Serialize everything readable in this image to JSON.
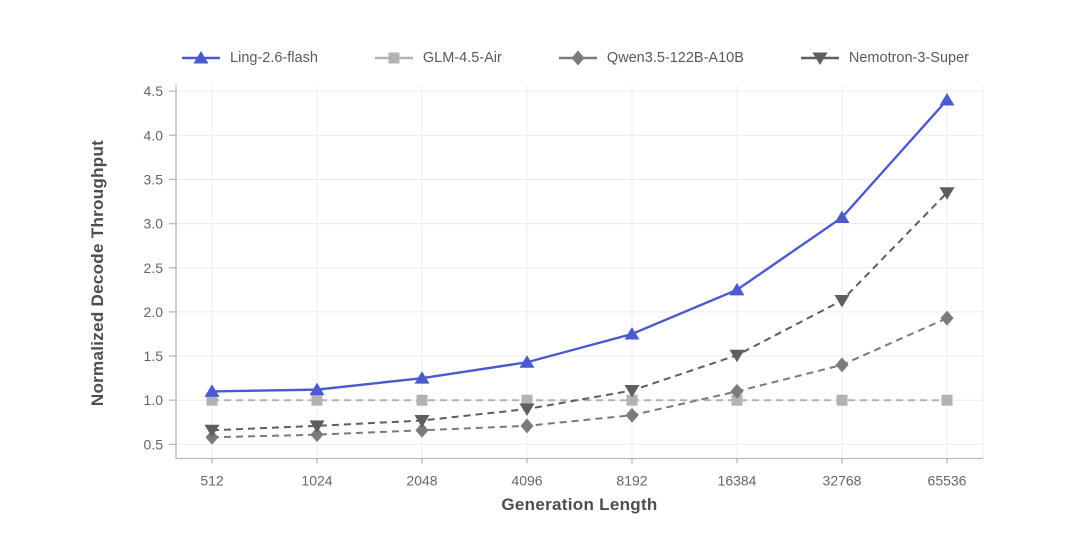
{
  "chart_data": {
    "type": "line",
    "title": "",
    "xlabel": "Generation Length",
    "ylabel": "Normalized Decode Throughput",
    "categories": [
      "512",
      "1024",
      "2048",
      "4096",
      "8192",
      "16384",
      "32768",
      "65536"
    ],
    "yticks": [
      "0.5",
      "1.0",
      "1.5",
      "2.0",
      "2.5",
      "3.0",
      "3.5",
      "4.0",
      "4.5"
    ],
    "ylim": [
      0.34,
      4.57
    ],
    "grid": true,
    "legend_position": "top-center",
    "series": [
      {
        "name": "Ling-2.6-flash",
        "color": "#4b5bce",
        "line_style": "solid",
        "marker": "triangle-up",
        "values": [
          1.1,
          1.12,
          1.25,
          1.43,
          1.75,
          2.25,
          3.07,
          4.4
        ]
      },
      {
        "name": "GLM-4.5-Air",
        "color": "#b3b3b3",
        "line_style": "dashed",
        "marker": "square",
        "values": [
          1.0,
          1.0,
          1.0,
          1.0,
          1.0,
          1.0,
          1.0,
          1.0
        ]
      },
      {
        "name": "Qwen3.5-122B-A10B",
        "color": "#7b7b7b",
        "line_style": "dashed",
        "marker": "diamond",
        "values": [
          0.58,
          0.61,
          0.66,
          0.71,
          0.83,
          1.1,
          1.4,
          1.93
        ]
      },
      {
        "name": "Nemotron-3-Super",
        "color": "#5e5e5e",
        "line_style": "dashed",
        "marker": "triangle-down",
        "values": [
          0.66,
          0.71,
          0.77,
          0.9,
          1.11,
          1.51,
          2.13,
          3.35
        ]
      }
    ]
  },
  "colors": {
    "background": "#ffffff",
    "grid": "#ececec",
    "axis": "#b8b8b8",
    "tick_label": "#666666",
    "axis_title": "#4d4d4d",
    "legend_text": "#595959"
  }
}
